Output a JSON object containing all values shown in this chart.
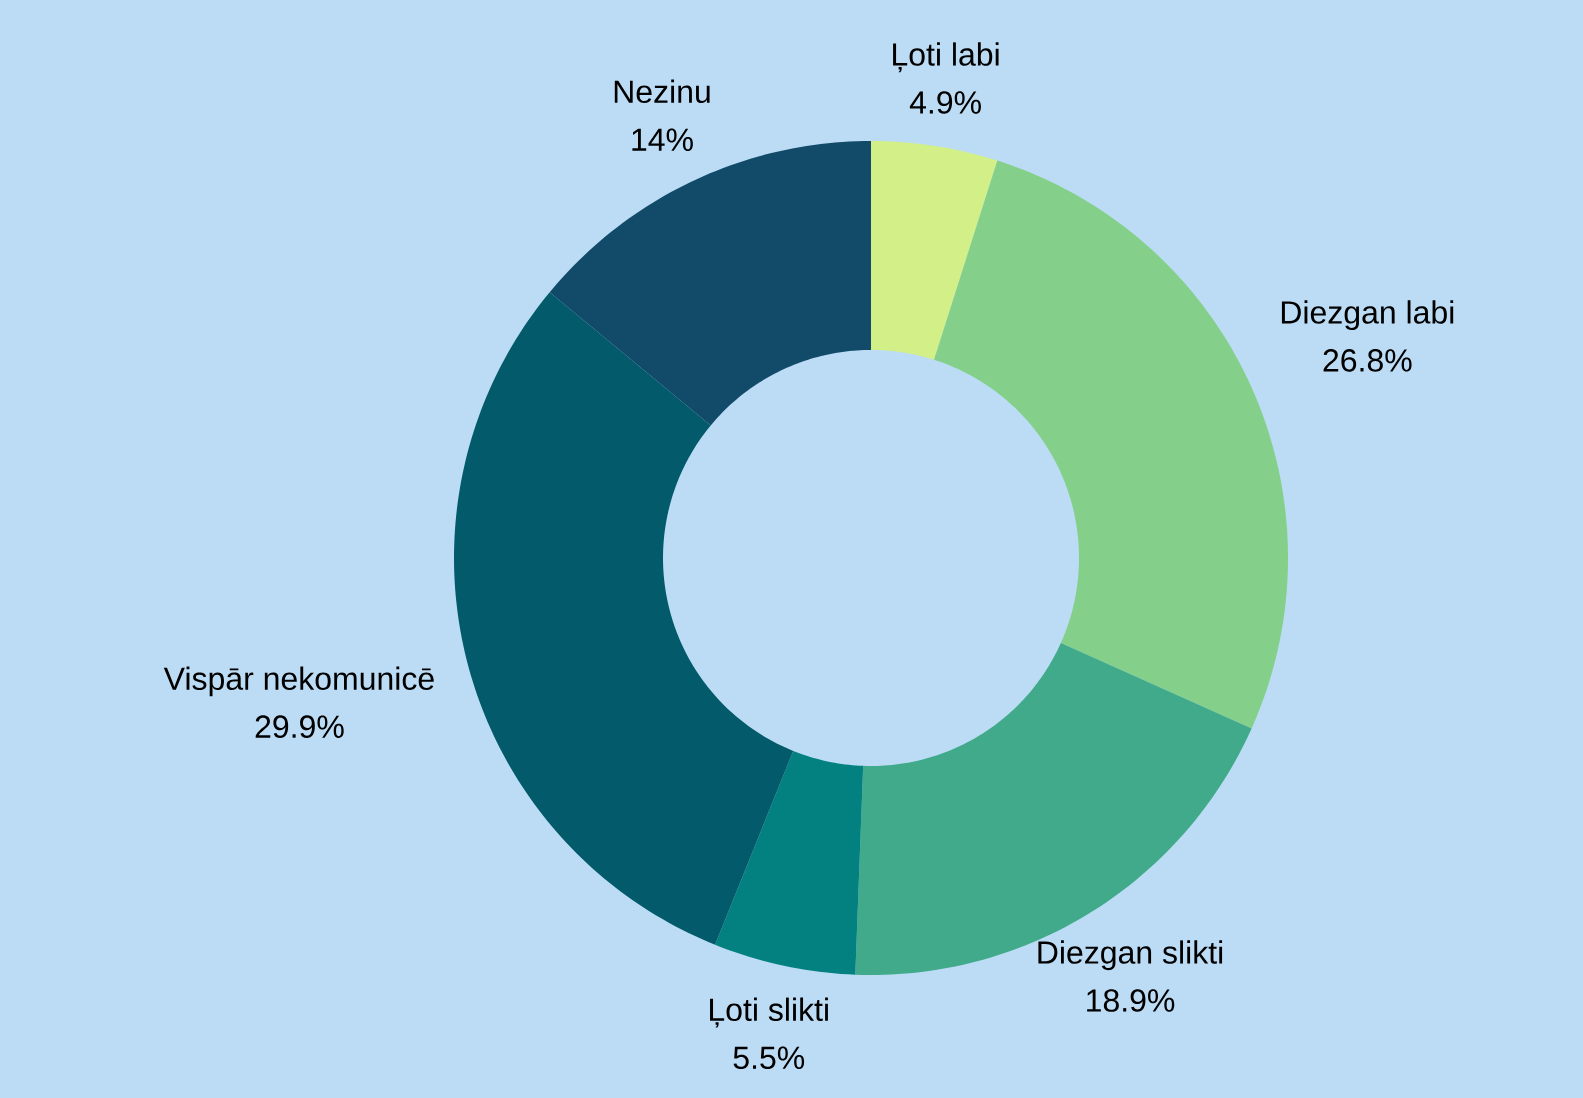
{
  "chart_data": {
    "type": "donut",
    "categories": [
      "Ļoti labi",
      "Diezgan labi",
      "Diezgan slikti",
      "Ļoti slikti",
      "Vispār nekomunicē",
      "Nezinu"
    ],
    "values": [
      4.9,
      26.8,
      18.9,
      5.5,
      29.9,
      14
    ],
    "value_labels": [
      "4.9%",
      "26.8%",
      "18.9%",
      "5.5%",
      "29.9%",
      "14%"
    ],
    "colors": [
      "#d2f087",
      "#84d08a",
      "#40aa8a",
      "#038080",
      "#025a6a",
      "#124b69"
    ]
  }
}
